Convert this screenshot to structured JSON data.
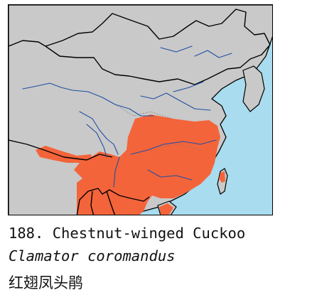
{
  "map": {
    "colors": {
      "water": "#a8dcee",
      "land": "#c9c9c9",
      "range": "#f4643a",
      "borders": "#000000",
      "rivers": "#1f4fa3"
    }
  },
  "caption": {
    "line1": "188. Chestnut-winged Cuckoo",
    "line2": "Clamator coromandus",
    "line3": "红翅凤头鹃"
  }
}
